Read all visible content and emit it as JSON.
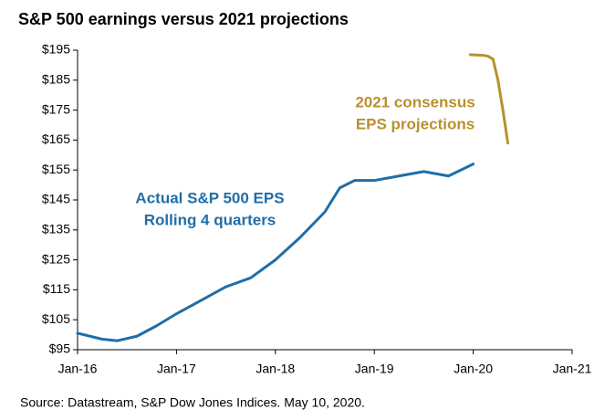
{
  "chart_data": {
    "type": "line",
    "title": "S&P 500 earnings versus 2021 projections",
    "source": "Source: Datastream, S&P Dow Jones Indices. May 10, 2020.",
    "xlim": [
      2016,
      2021
    ],
    "xticks": [
      {
        "value": 2016,
        "label": "Jan-16"
      },
      {
        "value": 2017,
        "label": "Jan-17"
      },
      {
        "value": 2018,
        "label": "Jan-18"
      },
      {
        "value": 2019,
        "label": "Jan-19"
      },
      {
        "value": 2020,
        "label": "Jan-20"
      },
      {
        "value": 2021,
        "label": "Jan-21"
      }
    ],
    "ylim": [
      95,
      195
    ],
    "yticks": [
      {
        "value": 95,
        "label": "$95"
      },
      {
        "value": 105,
        "label": "$105"
      },
      {
        "value": 115,
        "label": "$115"
      },
      {
        "value": 125,
        "label": "$125"
      },
      {
        "value": 135,
        "label": "$135"
      },
      {
        "value": 145,
        "label": "$145"
      },
      {
        "value": 155,
        "label": "$155"
      },
      {
        "value": 165,
        "label": "$165"
      },
      {
        "value": 175,
        "label": "$175"
      },
      {
        "value": 185,
        "label": "$185"
      },
      {
        "value": 195,
        "label": "$195"
      }
    ],
    "grid": false,
    "series": [
      {
        "name": "Actual S&P 500 EPS",
        "color": "#1f6ea8",
        "x": [
          2016.0,
          2016.25,
          2016.4,
          2016.6,
          2016.8,
          2017.0,
          2017.25,
          2017.5,
          2017.75,
          2018.0,
          2018.25,
          2018.5,
          2018.65,
          2018.8,
          2019.0,
          2019.25,
          2019.5,
          2019.75,
          2020.0
        ],
        "values": [
          100.5,
          98.5,
          98,
          99.5,
          103,
          107,
          111.5,
          116,
          119,
          125,
          132.5,
          141,
          149,
          151.5,
          151.5,
          153,
          154.5,
          153,
          157
        ]
      },
      {
        "name": "2021 consensus EPS projections",
        "color": "#b8912d",
        "x": [
          2019.97,
          2020.1,
          2020.15,
          2020.2,
          2020.25,
          2020.3,
          2020.35
        ],
        "values": [
          193.5,
          193.3,
          193,
          192,
          185,
          175,
          164
        ]
      }
    ],
    "annotations": [
      {
        "lines": [
          "Actual S&P 500 EPS",
          "Rolling 4 quarters"
        ],
        "color": "#1f6ea8"
      },
      {
        "lines": [
          "2021 consensus",
          "EPS projections"
        ],
        "color": "#b8912d"
      }
    ]
  }
}
